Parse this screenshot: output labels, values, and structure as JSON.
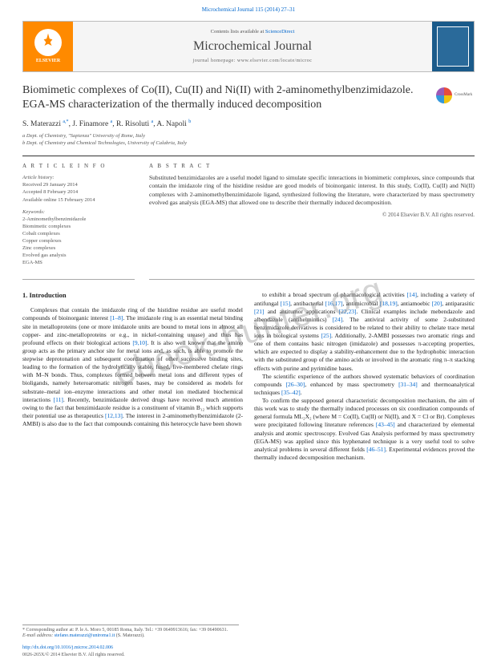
{
  "header": {
    "citation": "Microchemical Journal 115 (2014) 27–31",
    "contents_prefix": "Contents lists available at ",
    "contents_link": "ScienceDirect",
    "journal_name": "Microchemical Journal",
    "homepage": "journal homepage: www.elsevier.com/locate/microc",
    "elsevier": "ELSEVIER"
  },
  "article": {
    "title": "Biomimetic complexes of Co(II), Cu(II) and Ni(II) with 2-aminomethylbenzimidazole. EGA-MS characterization of the thermally induced decomposition",
    "crossmark": "CrossMark",
    "authors_html": "S. Materazzi <sup>a,*</sup>, J. Finamore <sup>a</sup>, R. Risoluti <sup>a</sup>, A. Napoli <sup>b</sup>",
    "affiliations": [
      "a Dept. of Chemistry, \"Sapienza\" University of Rome, Italy",
      "b Dept. of Chemistry and Chemical Technologies, University of Calabria, Italy"
    ]
  },
  "info": {
    "heading": "A R T I C L E  I N F O",
    "history_label": "Article history:",
    "history": [
      "Received 29 January 2014",
      "Accepted 8 February 2014",
      "Available online 15 February 2014"
    ],
    "keywords_label": "Keywords:",
    "keywords": [
      "2-Aminomethylbenzimidazole",
      "Biomimetic complexes",
      "Cobalt complexes",
      "Copper complexes",
      "Zinc complexes",
      "Evolved gas analysis",
      "EGA-MS"
    ]
  },
  "abstract": {
    "heading": "A B S T R A C T",
    "text": "Substituted benzimidazoles are a useful model ligand to simulate specific interactions in biomimetic complexes, since compounds that contain the imidazole ring of the histidine residue are good models of bioinorganic interest. In this study, Co(II), Cu(II) and Ni(II) complexes with 2-aminomethylbenzimidazole ligand, synthesized following the literature, were characterized by mass spectrometry evolved gas analysis (EGA-MS) that allowed one to describe their thermally induced decomposition.",
    "copyright": "© 2014 Elsevier B.V. All rights reserved."
  },
  "body": {
    "section1_heading": "1. Introduction",
    "col1_p1": "Complexes that contain the imidazole ring of the histidine residue are useful model compounds of bioinorganic interest [1–8]. The imidazole ring is an essential metal binding site in metalloproteins (one or more imidazole units are bound to metal ions in almost all copper- and zinc-metalloproteins or e.g., in nickel-containing urease) and thus has profound effects on their biological actions [9,10]. It is also well known that the amino group acts as the primary anchor site for metal ions and, as such, is able to promote the stepwise deprotonation and subsequent coordination of other successive binding sites, leading to the formation of the hydrolytically stable, fused, five-membered chelate rings with M–N bonds. Thus, complexes formed between metal ions and different types of bioligands, namely heteroaromatic nitrogen bases, may be considered as models for substrate–metal ion–enzyme interactions and other metal ion mediated biochemical interactions [11]. Recently, benzimidazole derived drugs have received much attention owing to the fact that benzimidazole residue is a constituent of vitamin B₁₂ which supports their potential use as therapeutics [12,13]. The interest in 2-aminomethylbenzimidazole (2-AMBI) is also due to the fact that compounds containing this heterocycle have been shown",
    "col2_p1": "to exhibit a broad spectrum of pharmacological activities [14], including a variety of antifungal [15], antibacterial [16,17], antimicrobial [18,19], antiamoebic [20], antiparasitic [21] and antitumor applications [22,23]. Clinical examples include mebendazole and albendazole (antihelmintics) [24]. The antiviral activity of some 2-substituted benzimidazole derivatives is considered to be related to their ability to chelate trace metal ions in biological systems [25]. Additionally, 2-AMBI possesses two aromatic rings and one of them contains basic nitrogen (imidazole) and possesses π-accepting properties, which are expected to display a stability-enhancement due to the hydrophobic interaction with the substituted group of the amino acids or involved in the aromatic ring π–π stacking effects with purine and pyrimidine bases.",
    "col2_p2": "The scientific experience of the authors showed systematic behaviors of coordination compounds [26–30], enhanced by mass spectrometry [31–34] and thermoanalytical techniques [35–42].",
    "col2_p3": "To confirm the supposed general characteristic decomposition mechanism, the aim of this work was to study the thermally induced processes on six coordination compounds of general formula ML₂X₂ (where M = Co(II), Cu(II) or Ni(II), and X = Cl or Br). Complexes were precipitated following literature references [43–45] and characterized by elemental analysis and atomic spectroscopy. Evolved Gas Analysis performed by mass spectrometry (EGA-MS) was applied since this hyphenated technique is a very useful tool to solve analytical problems in several different fields [46–51]. Experimental evidences proved the thermally induced decomposition mechanism."
  },
  "footer": {
    "corr": "* Corresponding author at: P. le A. Moro 5, 00185 Roma, Italy. Tel.: +39 0649913616; fax: +39 06490631.",
    "email_label": "E-mail address:",
    "email": "stefano.materazzi@uniroma1.it",
    "email_who": "(S. Materazzi).",
    "doi": "http://dx.doi.org/10.1016/j.microc.2014.02.006",
    "issn": "0026-265X/© 2014 Elsevier B.V. All rights reserved."
  },
  "watermark": "ebook-hunter.org"
}
